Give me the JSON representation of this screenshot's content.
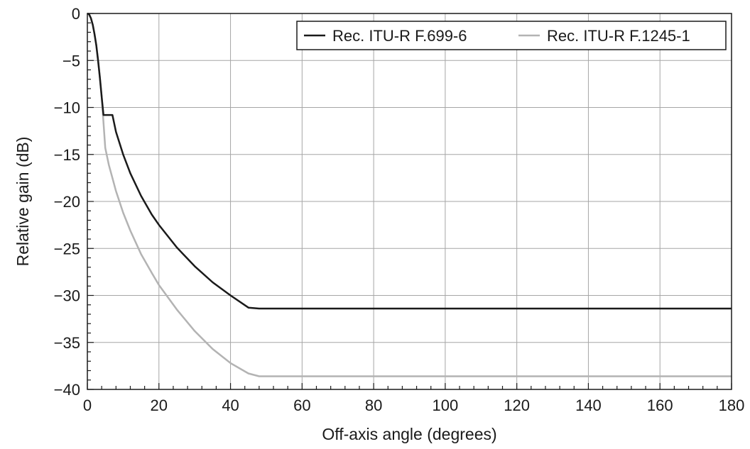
{
  "chart_data": {
    "type": "line",
    "title": "",
    "xlabel": "Off-axis angle (degrees)",
    "ylabel": "Relative gain (dB)",
    "xlim": [
      0,
      180
    ],
    "ylim": [
      -40,
      0
    ],
    "x_ticks": [
      0,
      20,
      40,
      60,
      80,
      100,
      120,
      140,
      160,
      180
    ],
    "y_ticks": [
      0,
      -5,
      -10,
      -15,
      -20,
      -25,
      -30,
      -35,
      -40
    ],
    "x_tick_labels": [
      "0",
      "20",
      "40",
      "60",
      "80",
      "100",
      "120",
      "140",
      "160",
      "180"
    ],
    "y_tick_labels": [
      "0",
      "−5",
      "−10",
      "−15",
      "−20",
      "−25",
      "−30",
      "−35",
      "−40"
    ],
    "grid": true,
    "legend_position": "top-right",
    "series": [
      {
        "name": "Rec. ITU-R F.699-6",
        "color": "#1a1a1a",
        "x": [
          0,
          0.5,
          1,
          1.5,
          2,
          2.5,
          3,
          3.5,
          4,
          4.5,
          5,
          6,
          7,
          8,
          10,
          12,
          15,
          18,
          20,
          25,
          30,
          35,
          40,
          45,
          48,
          60,
          80,
          100,
          120,
          140,
          160,
          180
        ],
        "y": [
          0,
          -0.1,
          -0.5,
          -1.2,
          -2.2,
          -3.4,
          -5.0,
          -6.8,
          -8.9,
          -10.8,
          -10.8,
          -10.8,
          -10.8,
          -12.6,
          -15.0,
          -17.0,
          -19.4,
          -21.4,
          -22.5,
          -24.9,
          -26.9,
          -28.6,
          -30.0,
          -31.3,
          -31.4,
          -31.4,
          -31.4,
          -31.4,
          -31.4,
          -31.4,
          -31.4,
          -31.4
        ]
      },
      {
        "name": "Rec. ITU-R F.1245-1",
        "color": "#b3b3b3",
        "x": [
          0,
          0.5,
          1,
          1.5,
          2,
          2.5,
          3,
          3.5,
          4,
          4.5,
          5,
          6,
          7,
          8,
          10,
          12,
          15,
          18,
          20,
          25,
          30,
          35,
          40,
          45,
          48,
          60,
          80,
          100,
          120,
          140,
          160,
          180
        ],
        "y": [
          0,
          -0.1,
          -0.5,
          -1.2,
          -2.2,
          -3.4,
          -5.0,
          -6.8,
          -8.9,
          -11.6,
          -14.3,
          -16.1,
          -17.5,
          -18.9,
          -21.2,
          -23.1,
          -25.6,
          -27.6,
          -28.9,
          -31.5,
          -33.8,
          -35.7,
          -37.2,
          -38.3,
          -38.6,
          -38.6,
          -38.6,
          -38.6,
          -38.6,
          -38.6,
          -38.6,
          -38.6
        ]
      }
    ]
  }
}
